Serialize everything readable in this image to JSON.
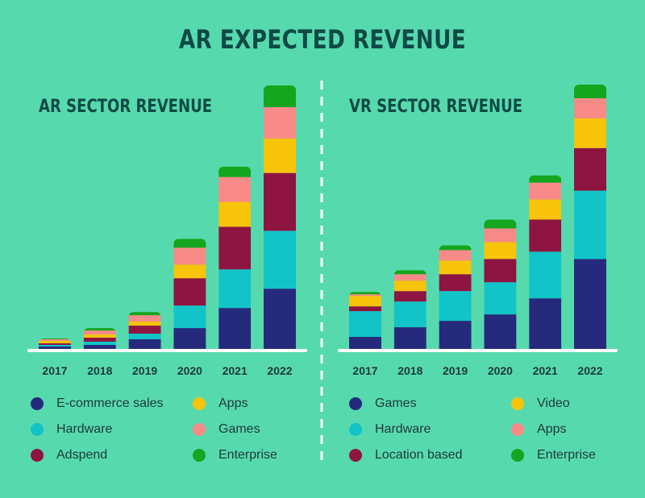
{
  "title": "AR EXPECTED REVENUE",
  "colors": {
    "background": "#57d9ae",
    "navy": "#262a7c",
    "cyan": "#12c4c8",
    "maroon": "#8e1541",
    "yellow": "#f7c40a",
    "pink": "#f88a88",
    "green": "#16a51e",
    "baseline": "#ffffff",
    "divider": "#ffffff"
  },
  "chart_data": [
    {
      "type": "bar",
      "stacked": true,
      "title": "AR SECTOR REVENUE",
      "categories": [
        "2017",
        "2018",
        "2019",
        "2020",
        "2021",
        "2022"
      ],
      "series": [
        {
          "name": "E-commerce sales",
          "color": "#262a7c",
          "values": [
            3,
            5,
            12,
            26,
            51,
            75
          ]
        },
        {
          "name": "Hardware",
          "color": "#12c4c8",
          "values": [
            2,
            4,
            7,
            28,
            48,
            72
          ]
        },
        {
          "name": "Adspend",
          "color": "#8e1541",
          "values": [
            2,
            5,
            10,
            34,
            53,
            72
          ]
        },
        {
          "name": "Apps",
          "color": "#f7c40a",
          "values": [
            3,
            4,
            5,
            17,
            31,
            43
          ]
        },
        {
          "name": "Games",
          "color": "#f88a88",
          "values": [
            2,
            5,
            8,
            21,
            31,
            39
          ]
        },
        {
          "name": "Enterprise",
          "color": "#16a51e",
          "values": [
            1,
            3,
            4,
            11,
            13,
            27
          ]
        }
      ],
      "ylim": [
        0,
        330
      ],
      "legend": "bottom"
    },
    {
      "type": "bar",
      "stacked": true,
      "title": "VR SECTOR REVENUE",
      "categories": [
        "2017",
        "2018",
        "2019",
        "2020",
        "2021",
        "2022"
      ],
      "series": [
        {
          "name": "Games",
          "color": "#262a7c",
          "values": [
            15,
            27,
            35,
            43,
            63,
            112
          ]
        },
        {
          "name": "Hardware",
          "color": "#12c4c8",
          "values": [
            32,
            32,
            37,
            40,
            58,
            85
          ]
        },
        {
          "name": "Location based",
          "color": "#8e1541",
          "values": [
            6,
            13,
            21,
            29,
            40,
            53
          ]
        },
        {
          "name": "Video",
          "color": "#f7c40a",
          "values": [
            13,
            13,
            17,
            21,
            25,
            37
          ]
        },
        {
          "name": "Apps",
          "color": "#f88a88",
          "values": [
            2,
            8,
            13,
            17,
            21,
            25
          ]
        },
        {
          "name": "Enterprise",
          "color": "#16a51e",
          "values": [
            3,
            5,
            6,
            11,
            9,
            17
          ]
        }
      ],
      "ylim": [
        0,
        330
      ],
      "legend": "bottom"
    }
  ]
}
